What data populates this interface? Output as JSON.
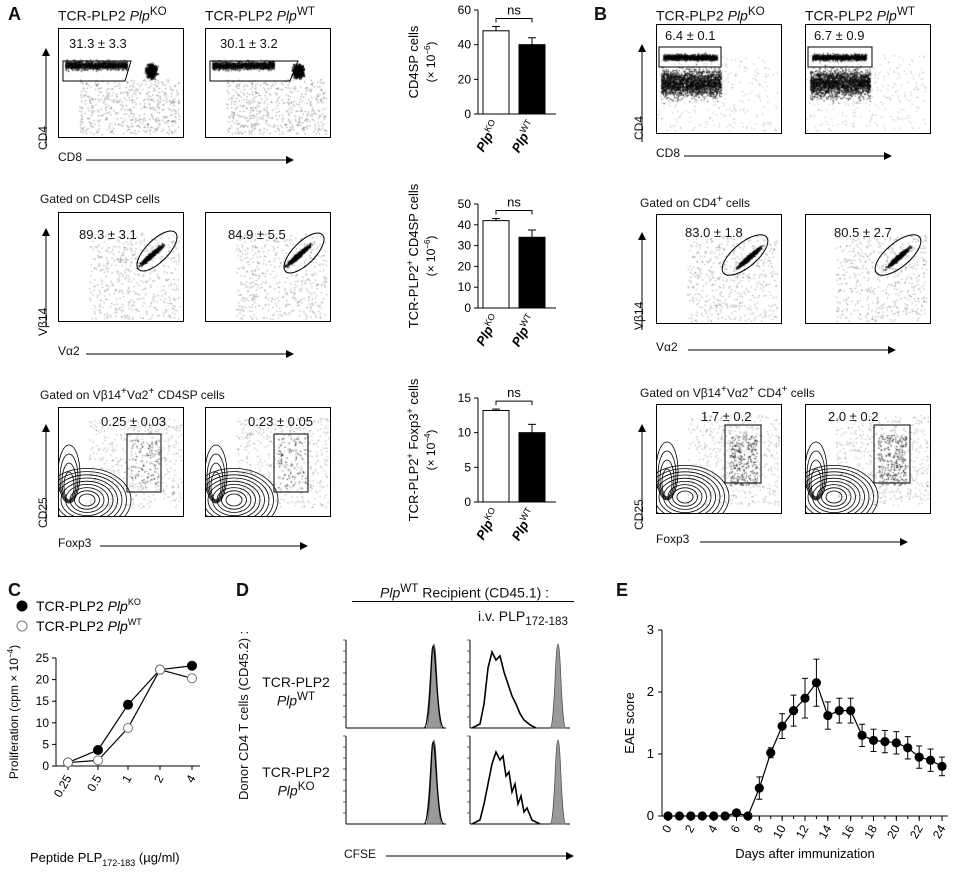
{
  "panels": {
    "A": {
      "label": "A",
      "row1": {
        "col1_title_main": "TCR-PLP2",
        "col1_title_geno": "Plp",
        "col1_title_sup": "KO",
        "col2_title_main": "TCR-PLP2",
        "col2_title_geno": "Plp",
        "col2_title_sup": "WT",
        "val1": "31.3 ± 3.3",
        "val2": "30.1 ± 3.2",
        "ylabel": "CD4",
        "xlabel": "CD8"
      },
      "row2": {
        "gate": "Gated on CD4SP cells",
        "val1": "89.3 ± 3.1",
        "val2": "84.9 ± 5.5",
        "ylabel": "Vβ14",
        "xlabel": "Vα2"
      },
      "row3": {
        "gate_pre": "Gated on Vβ14",
        "gate_mid": "Vα2",
        "gate_post": " CD4SP cells",
        "val1": "0.25 ± 0.03",
        "val2": "0.23 ± 0.05",
        "ylabel": "CD25",
        "xlabel": "Foxp3"
      }
    },
    "B": {
      "label": "B",
      "row1": {
        "col1_title_main": "TCR-PLP2",
        "col1_title_geno": "Plp",
        "col1_title_sup": "KO",
        "col2_title_main": "TCR-PLP2",
        "col2_title_geno": "Plp",
        "col2_title_sup": "WT",
        "val1": "6.4 ± 0.1",
        "val2": "6.7 ± 0.9",
        "ylabel": "CD4",
        "xlabel": "CD8"
      },
      "row2": {
        "gate_pre": "Gated on CD4",
        "gate_post": " cells",
        "val1": "83.0 ± 1.8",
        "val2": "80.5 ± 2.7",
        "ylabel": "Vβ14",
        "xlabel": "Vα2"
      },
      "row3": {
        "gate_pre": "Gated on Vβ14",
        "gate_mid": "Vα2",
        "gate_post": " CD4",
        "gate_end": " cells",
        "val1": "1.7 ± 0.2",
        "val2": "2.0 ± 0.2",
        "ylabel": "CD25",
        "xlabel": "Foxp3"
      }
    },
    "C": {
      "label": "C"
    },
    "D": {
      "label": "D",
      "recipient_geno": "Plp",
      "recipient_sup": "WT",
      "recipient_text": " Recipient (CD45.1) :",
      "iv_text": "i.v. PLP",
      "iv_sub": "172-183",
      "donor_label": "Donor CD4 T cells (CD45.2) :",
      "row1_line1": "TCR-PLP2",
      "row1_geno": "Plp",
      "row1_sup": "WT",
      "row2_line1": "TCR-PLP2",
      "row2_geno": "Plp",
      "row2_sup": "KO",
      "xlabel": "CFSE"
    },
    "E": {
      "label": "E"
    }
  },
  "chart_data": [
    {
      "id": "A-bar-1",
      "type": "bar",
      "ylabel_main": "CD4SP cells",
      "ylabel_unit": "(× 10",
      "ylabel_exp": "−6",
      "ylabel_close": ")",
      "categories": [
        "PlpKO",
        "PlpWT"
      ],
      "cat_geno": "Plp",
      "cat_sups": [
        "KO",
        "WT"
      ],
      "values": [
        48,
        40
      ],
      "errors": [
        2.5,
        4
      ],
      "ylim": [
        0,
        60
      ],
      "yticks": [
        "0",
        "20",
        "40",
        "60"
      ],
      "ytick_values": [
        0,
        20,
        40,
        60
      ],
      "significance": "ns"
    },
    {
      "id": "A-bar-2",
      "type": "bar",
      "ylabel_pre": "TCR-PLP2",
      "ylabel_sup": "+",
      "ylabel_main": " CD4SP cells",
      "ylabel_unit": "(× 10",
      "ylabel_exp": "−6",
      "ylabel_close": ")",
      "categories": [
        "PlpKO",
        "PlpWT"
      ],
      "cat_geno": "Plp",
      "cat_sups": [
        "KO",
        "WT"
      ],
      "values": [
        42,
        34
      ],
      "errors": [
        1,
        3.5
      ],
      "ylim": [
        0,
        50
      ],
      "yticks": [
        "0",
        "10",
        "20",
        "30",
        "40",
        "50"
      ],
      "ytick_values": [
        0,
        10,
        20,
        30,
        40,
        50
      ],
      "significance": "ns"
    },
    {
      "id": "A-bar-3",
      "type": "bar",
      "ylabel_pre": "TCR-PLP2",
      "ylabel_sup": "+",
      "ylabel_main": " Foxp3",
      "ylabel_sup2": "+",
      "ylabel_end": " cells",
      "ylabel_unit": "(× 10",
      "ylabel_exp": "−4",
      "ylabel_close": ")",
      "categories": [
        "PlpKO",
        "PlpWT"
      ],
      "cat_geno": "Plp",
      "cat_sups": [
        "KO",
        "WT"
      ],
      "values": [
        13.2,
        10
      ],
      "errors": [
        0.2,
        1.2
      ],
      "ylim": [
        0,
        15
      ],
      "yticks": [
        "0",
        "5",
        "10",
        "15"
      ],
      "ytick_values": [
        0,
        5,
        10,
        15
      ],
      "significance": "ns"
    },
    {
      "id": "C-line",
      "type": "line",
      "ylabel": "Proliferation (cpm × 10",
      "ylabel_exp": "−4",
      "ylabel_close": ")",
      "xlabel_pre": "Peptide PLP",
      "xlabel_sub": "172-183",
      "xlabel_post": " (µg/ml)",
      "categories": [
        "0.25",
        "0.5",
        "1",
        "2",
        "4"
      ],
      "ylim": [
        0,
        25
      ],
      "yticks": [
        "0",
        "5",
        "10",
        "15",
        "20",
        "25"
      ],
      "ytick_values": [
        0,
        5,
        10,
        15,
        20,
        25
      ],
      "series": [
        {
          "name": "TCR-PLP2 PlpKO",
          "legend_main": "TCR-PLP2 ",
          "legend_geno": "Plp",
          "legend_sup": "KO",
          "marker": "filled",
          "values": [
            0.8,
            3.7,
            14.2,
            22.3,
            23.2
          ]
        },
        {
          "name": "TCR-PLP2 PlpWT",
          "legend_main": "TCR-PLP2 ",
          "legend_geno": "Plp",
          "legend_sup": "WT",
          "marker": "open",
          "values": [
            0.8,
            1.3,
            8.8,
            22.3,
            20.3
          ]
        }
      ]
    },
    {
      "id": "E-line",
      "type": "line",
      "ylabel": "EAE score",
      "xlabel": "Days after immunization",
      "xticks": [
        "0",
        "2",
        "4",
        "6",
        "8",
        "10",
        "12",
        "14",
        "16",
        "18",
        "20",
        "22",
        "24"
      ],
      "xtick_values": [
        0,
        2,
        4,
        6,
        8,
        10,
        12,
        14,
        16,
        18,
        20,
        22,
        24
      ],
      "ylim": [
        0,
        3
      ],
      "xlim": [
        0,
        24
      ],
      "yticks": [
        "0",
        "1",
        "2",
        "3"
      ],
      "ytick_values": [
        0,
        1,
        2,
        3
      ],
      "x": [
        0,
        1,
        2,
        3,
        4,
        5,
        6,
        7,
        8,
        9,
        10,
        11,
        12,
        13,
        14,
        15,
        16,
        17,
        18,
        19,
        20,
        21,
        22,
        23,
        24
      ],
      "values": [
        0,
        0,
        0,
        0,
        0,
        0,
        0.05,
        0,
        0.45,
        1.02,
        1.45,
        1.7,
        1.9,
        2.15,
        1.62,
        1.7,
        1.7,
        1.3,
        1.22,
        1.2,
        1.18,
        1.1,
        0.95,
        0.9,
        0.8
      ],
      "errors": [
        0,
        0,
        0,
        0,
        0,
        0,
        0.03,
        0,
        0.18,
        0.08,
        0.2,
        0.25,
        0.32,
        0.38,
        0.22,
        0.2,
        0.2,
        0.18,
        0.18,
        0.18,
        0.18,
        0.18,
        0.18,
        0.18,
        0.15
      ]
    }
  ]
}
